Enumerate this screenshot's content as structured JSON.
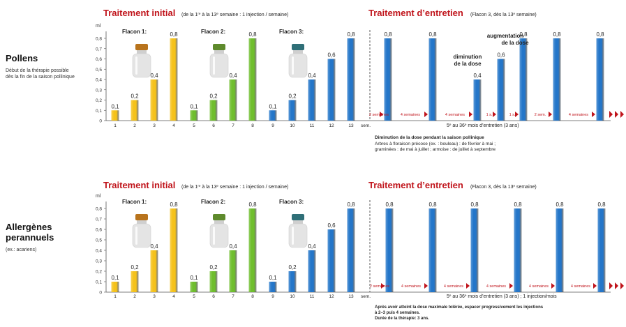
{
  "colors": {
    "red": "#c0141b",
    "yellow": "#f5c21b",
    "green": "#6fbe2e",
    "blue": "#2476c9",
    "axis": "#555555"
  },
  "panels": [
    {
      "id": "pollens",
      "side_title": "Pollens",
      "side_subtitle": "Début de la thérapie possible dès la fin de la saison pollinique",
      "initial_title": "Traitement initial",
      "initial_subtitle": "(de la 1re à la 13e semaine : 1 injection / semaine)",
      "maint_title": "Traitement d’entretien",
      "maint_subtitle": "(Flacon 3, dès la 13e semaine)",
      "flacon_labels": [
        "Flacon 1:",
        "Flacon 2:",
        "Flacon 3:"
      ],
      "sem_label": "sem.",
      "maint_axis_label": "5e au 36e mois d’entretien (3 ans)",
      "increase_label": [
        "augmentation",
        "de la dose"
      ],
      "decrease_label": [
        "diminution",
        "de la dose"
      ],
      "interval_labels": [
        "2 semaines",
        "4 semaines",
        "4 semaines",
        "1 s.",
        "1 s.",
        "2 sem.",
        "4 semaines"
      ],
      "note_title": "Diminution de la dose pendant la saison pollinique",
      "note_lines": [
        "Arbres à floraison précoce (ex. : bouleau) : de février à mai ;",
        "graminées : de mai à juillet ; armoise : de juillet à septembre"
      ]
    },
    {
      "id": "perannuels",
      "side_title": "Allergènes perannuels",
      "side_subtitle": "(ex.: acariens)",
      "initial_title": "Traitement initial",
      "initial_subtitle": "(de la 1re à la 13e semaine : 1 injection / semaine)",
      "maint_title": "Traitement d’entretien",
      "maint_subtitle": "(Flacon 3, dès la 13e semaine)",
      "flacon_labels": [
        "Flacon 1:",
        "Flacon 2:",
        "Flacon 3:"
      ],
      "sem_label": "sem.",
      "maint_axis_label": "5e au 36e mois d’entretien (3 ans) ; 1 injection/mois",
      "interval_labels": [
        "2 semaines",
        "4 semaines",
        "4 semaines",
        "4 semaines",
        "4 semaines",
        "4 semaines"
      ],
      "note_lines": [
        "Après avoir atteint la dose maximale tolérée, espacer progressivement les injections",
        "à 2–3 puis 4 semaines.",
        "Durée de la thérapie: 3 ans."
      ]
    }
  ],
  "chart_data": [
    {
      "type": "bar",
      "panel": "pollens",
      "ylabel": "ml",
      "ylim": [
        0,
        0.8
      ],
      "yticks": [
        "0",
        "0,1",
        "0,2",
        "0,3",
        "0,4",
        "0,5",
        "0,6",
        "0,7",
        "0,8"
      ],
      "series": [
        {
          "name": "Flacon 1:",
          "color": "yellow",
          "categories": [
            "1",
            "2",
            "3",
            "4"
          ],
          "values": [
            0.1,
            0.2,
            0.4,
            0.8
          ],
          "labels": [
            "0,1",
            "0,2",
            "0,4",
            "0,8"
          ]
        },
        {
          "name": "Flacon 2:",
          "color": "green",
          "categories": [
            "5",
            "6",
            "7",
            "8"
          ],
          "values": [
            0.1,
            0.2,
            0.4,
            0.8
          ],
          "labels": [
            "0,1",
            "0,2",
            "0,4",
            "0,8"
          ]
        },
        {
          "name": "Flacon 3:",
          "color": "blue",
          "categories": [
            "9",
            "10",
            "11",
            "12",
            "13"
          ],
          "values": [
            0.1,
            0.2,
            0.4,
            0.6,
            0.8
          ],
          "labels": [
            "0,1",
            "0,2",
            "0,4",
            "0,6",
            "0,8"
          ]
        }
      ],
      "maintenance": {
        "values": [
          0.8,
          0.8,
          0.4,
          0.6,
          0.8,
          0.8,
          0.8
        ],
        "labels": [
          "0,8",
          "0,8",
          "0,4",
          "0,6",
          "0,8",
          "0,8",
          "0,8"
        ]
      }
    },
    {
      "type": "bar",
      "panel": "perannuels",
      "ylabel": "ml",
      "ylim": [
        0,
        0.8
      ],
      "yticks": [
        "0",
        "0,1",
        "0,2",
        "0,3",
        "0,4",
        "0,5",
        "0,6",
        "0,7",
        "0,8"
      ],
      "series": [
        {
          "name": "Flacon 1:",
          "color": "yellow",
          "categories": [
            "1",
            "2",
            "3",
            "4"
          ],
          "values": [
            0.1,
            0.2,
            0.4,
            0.8
          ],
          "labels": [
            "0,1",
            "0,2",
            "0,4",
            "0,8"
          ]
        },
        {
          "name": "Flacon 2:",
          "color": "green",
          "categories": [
            "5",
            "6",
            "7",
            "8"
          ],
          "values": [
            0.1,
            0.2,
            0.4,
            0.8
          ],
          "labels": [
            "0,1",
            "0,2",
            "0,4",
            "0,8"
          ]
        },
        {
          "name": "Flacon 3:",
          "color": "blue",
          "categories": [
            "9",
            "10",
            "11",
            "12",
            "13"
          ],
          "values": [
            0.1,
            0.2,
            0.4,
            0.6,
            0.8
          ],
          "labels": [
            "0,1",
            "0,2",
            "0,4",
            "0,6",
            "0,8"
          ]
        }
      ],
      "maintenance": {
        "values": [
          0.8,
          0.8,
          0.8,
          0.8,
          0.8,
          0.8
        ],
        "labels": [
          "0,8",
          "0,8",
          "0,8",
          "0,8",
          "0,8",
          "0,8"
        ]
      }
    }
  ]
}
